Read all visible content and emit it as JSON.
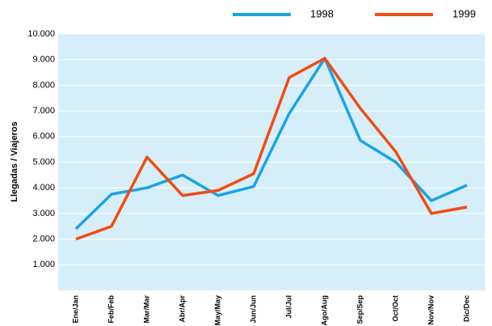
{
  "chart_data": {
    "type": "line",
    "y_label": "Llegadas / Viajeros",
    "categories": [
      "Ene/Jan",
      "Feb/Feb",
      "Mar/Mar",
      "Abr/Apr",
      "May/May",
      "Jun/Jun",
      "Jul/Jul",
      "Ago/Aug",
      "Sep/Sep",
      "Oct/Oct",
      "Nov/Nov",
      "Dic/Dec"
    ],
    "series": [
      {
        "name": "1998",
        "color": "#1aa3e8",
        "values": [
          2400,
          3750,
          4000,
          4500,
          3700,
          4050,
          6900,
          9050,
          5850,
          5000,
          3500,
          4100
        ]
      },
      {
        "name": "1999",
        "color": "#f04d12",
        "values": [
          2000,
          2500,
          5200,
          3700,
          3900,
          4550,
          8300,
          9050,
          7100,
          5400,
          3000,
          3250
        ]
      }
    ],
    "ylim": [
      0,
      10000
    ],
    "yticks": [
      {
        "value": 1000,
        "label": "1.000"
      },
      {
        "value": 2000,
        "label": "2.000"
      },
      {
        "value": 3000,
        "label": "3.000"
      },
      {
        "value": 4000,
        "label": "4.000"
      },
      {
        "value": 5000,
        "label": "5.000"
      },
      {
        "value": 6000,
        "label": "6.000"
      },
      {
        "value": 7000,
        "label": "7.000"
      },
      {
        "value": 8000,
        "label": "8.000"
      },
      {
        "value": 9000,
        "label": "9.000"
      },
      {
        "value": 10000,
        "label": "10.000"
      }
    ],
    "grid": true,
    "legend": "top-right"
  }
}
